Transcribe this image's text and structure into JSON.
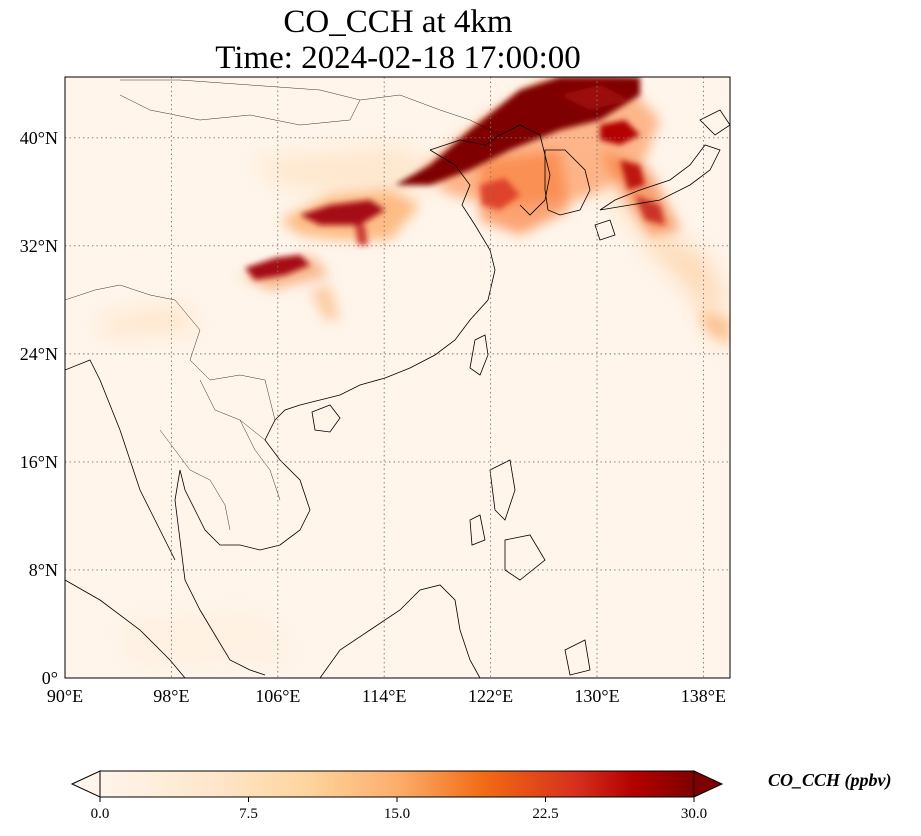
{
  "title": {
    "line1": "CO_CCH at 4km",
    "line2": "Time: 2024-02-18 17:00:00"
  },
  "map": {
    "lon_range": [
      90,
      140
    ],
    "lat_range": [
      0,
      44.5
    ],
    "lat_ticks": [
      {
        "value": 0,
        "label": "0°"
      },
      {
        "value": 8,
        "label": "8°N"
      },
      {
        "value": 16,
        "label": "16°N"
      },
      {
        "value": 24,
        "label": "24°N"
      },
      {
        "value": 32,
        "label": "32°N"
      },
      {
        "value": 40,
        "label": "40°N"
      }
    ],
    "lon_ticks": [
      {
        "value": 90,
        "label": "90°E"
      },
      {
        "value": 98,
        "label": "98°E"
      },
      {
        "value": 106,
        "label": "106°E"
      },
      {
        "value": 114,
        "label": "114°E"
      },
      {
        "value": 122,
        "label": "122°E"
      },
      {
        "value": 130,
        "label": "130°E"
      },
      {
        "value": 138,
        "label": "138°E"
      }
    ],
    "gridlines": true,
    "background_color": "#fff5eb",
    "colormap": "OrRd"
  },
  "colorbar": {
    "label": "CO_CCH (ppbv)",
    "min": 0,
    "max": 30,
    "extend": "both",
    "ticks": [
      {
        "value": 0,
        "label": "0.0"
      },
      {
        "value": 7.5,
        "label": "7.5"
      },
      {
        "value": 15,
        "label": "15.0"
      },
      {
        "value": 22.5,
        "label": "22.5"
      },
      {
        "value": 30,
        "label": "30.0"
      }
    ],
    "colors": [
      "#fff5eb",
      "#fdd49e",
      "#fdae6b",
      "#f16913",
      "#d94801",
      "#a50f15",
      "#7f0000"
    ]
  }
}
